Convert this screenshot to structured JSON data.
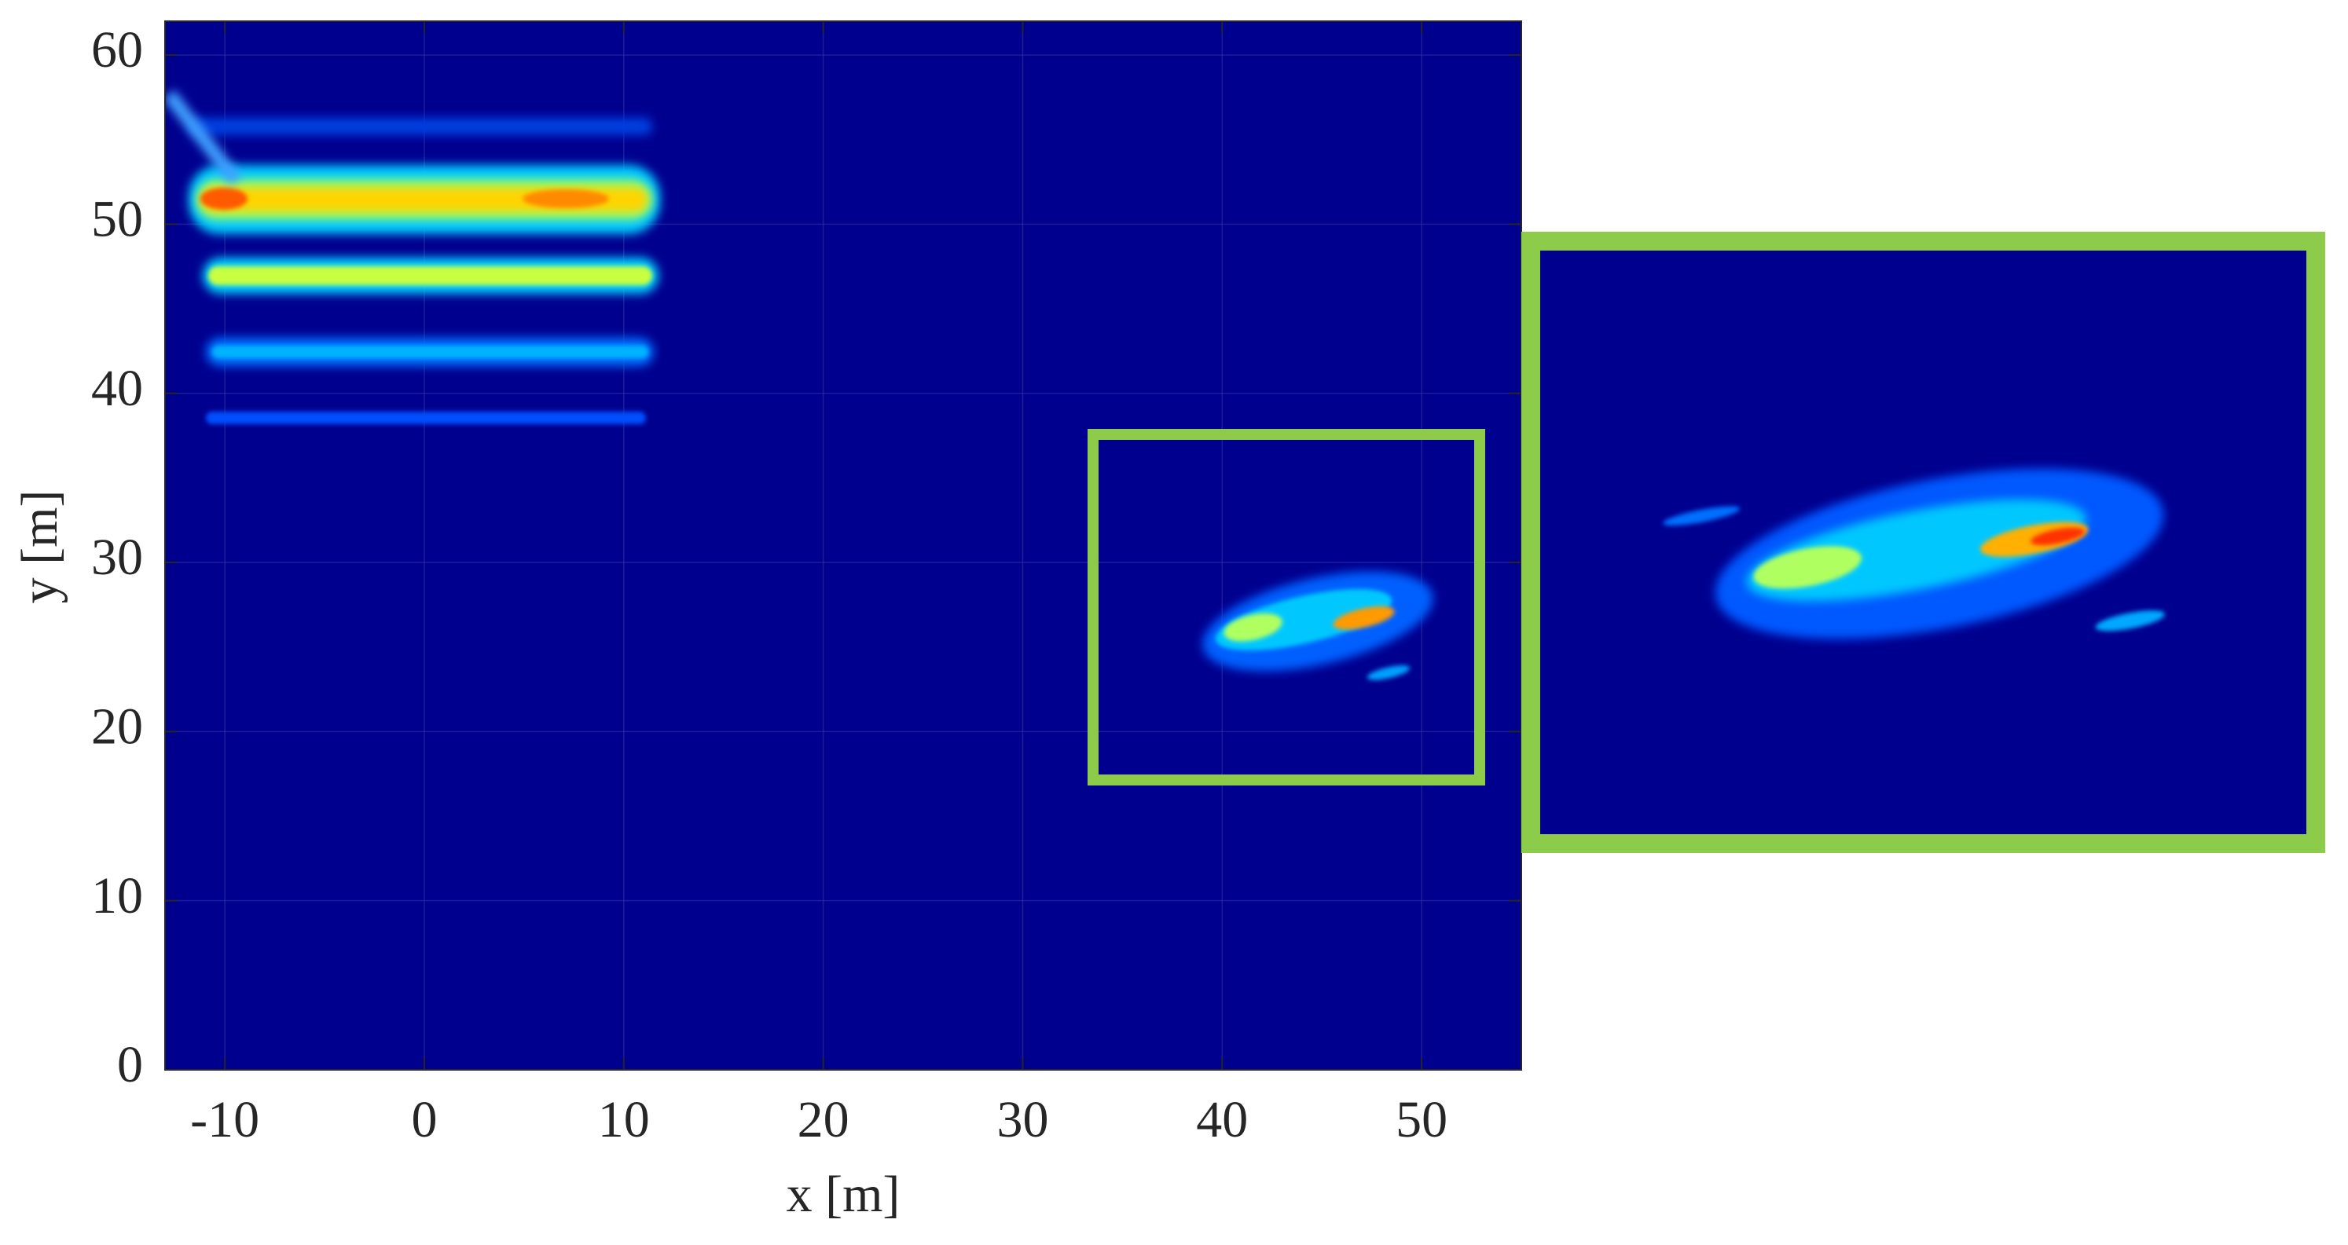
{
  "chart_data": {
    "type": "heatmap",
    "xlabel": "x [m]",
    "ylabel": "y [m]",
    "xlim": [
      -13,
      55
    ],
    "ylim": [
      0,
      62
    ],
    "xticks": [
      -10,
      0,
      10,
      20,
      30,
      40,
      50
    ],
    "yticks": [
      0,
      10,
      20,
      30,
      40,
      50,
      60
    ],
    "background": "#00008f",
    "grid": true
  }
}
